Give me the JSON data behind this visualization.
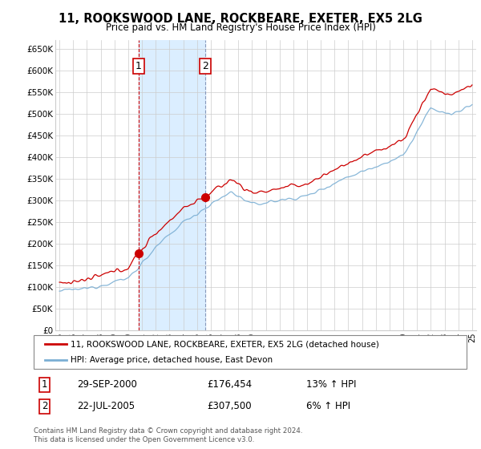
{
  "title": "11, ROOKSWOOD LANE, ROCKBEARE, EXETER, EX5 2LG",
  "subtitle": "Price paid vs. HM Land Registry's House Price Index (HPI)",
  "ylabel_ticks": [
    "£0",
    "£50K",
    "£100K",
    "£150K",
    "£200K",
    "£250K",
    "£300K",
    "£350K",
    "£400K",
    "£450K",
    "£500K",
    "£550K",
    "£600K",
    "£650K"
  ],
  "ytick_values": [
    0,
    50000,
    100000,
    150000,
    200000,
    250000,
    300000,
    350000,
    400000,
    450000,
    500000,
    550000,
    600000,
    650000
  ],
  "ylim": [
    0,
    670000
  ],
  "legend_line1": "11, ROOKSWOOD LANE, ROCKBEARE, EXETER, EX5 2LG (detached house)",
  "legend_line2": "HPI: Average price, detached house, East Devon",
  "transaction1_date": "29-SEP-2000",
  "transaction1_price": "£176,454",
  "transaction1_hpi": "13% ↑ HPI",
  "transaction2_date": "22-JUL-2005",
  "transaction2_price": "£307,500",
  "transaction2_hpi": "6% ↑ HPI",
  "footer": "Contains HM Land Registry data © Crown copyright and database right 2024.\nThis data is licensed under the Open Government Licence v3.0.",
  "red_color": "#cc0000",
  "blue_color": "#7bafd4",
  "shade_color": "#dbeeff",
  "transaction1_x": 2000.75,
  "transaction2_x": 2005.6,
  "background_color": "#ffffff",
  "grid_color": "#cccccc",
  "sale1_value": 176454,
  "sale2_value": 307500
}
